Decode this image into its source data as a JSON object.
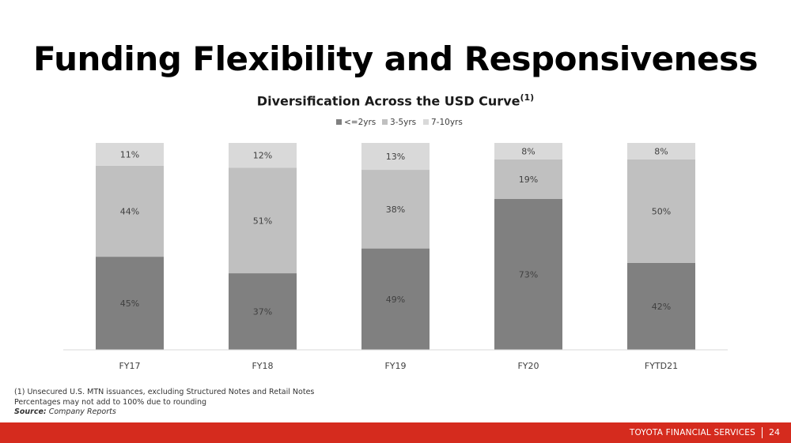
{
  "page": {
    "title": "Funding Flexibility and Responsiveness",
    "subtitle": "Diversification Across the USD Curve",
    "subtitle_sup": "(1)"
  },
  "footnotes": {
    "note1": "(1)  Unsecured U.S. MTN issuances, excluding Structured Notes and Retail Notes",
    "note2": "Percentages may not add to 100% due to rounding",
    "source_label": "Source:",
    "source_text": "Company Reports"
  },
  "footer": {
    "company": "TOYOTA FINANCIAL SERVICES",
    "page_number": "24",
    "bar_color": "#d52b1e"
  },
  "chart_data": {
    "type": "bar",
    "stacked": true,
    "categories": [
      "FY17",
      "FY18",
      "FY19",
      "FY20",
      "FYTD21"
    ],
    "series": [
      {
        "name": "<=2yrs",
        "values": [
          45,
          37,
          49,
          73,
          42
        ],
        "labels": [
          "45%",
          "37%",
          "49%",
          "73%",
          "42%"
        ],
        "color": "#808080"
      },
      {
        "name": "3-5yrs",
        "values": [
          44,
          51,
          38,
          19,
          50
        ],
        "labels": [
          "44%",
          "51%",
          "38%",
          "19%",
          "50%"
        ],
        "color": "#c0c0c0"
      },
      {
        "name": "7-10yrs",
        "values": [
          11,
          12,
          13,
          8,
          8
        ],
        "labels": [
          "11%",
          "12%",
          "13%",
          "8%",
          "8%"
        ],
        "color": "#d9d9d9"
      }
    ],
    "legend_position": "top-center",
    "grid": false,
    "ylim": [
      0,
      100
    ]
  }
}
